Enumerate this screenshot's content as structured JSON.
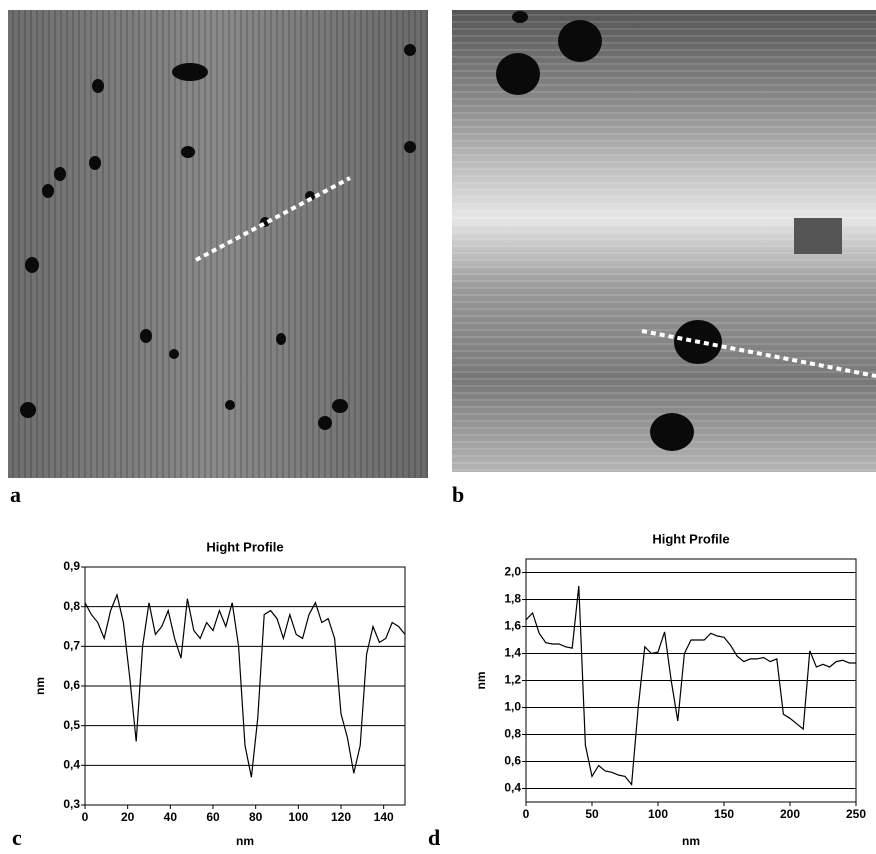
{
  "images": [
    {
      "label": "a"
    },
    {
      "label": "b"
    }
  ],
  "chart_data": [
    {
      "type": "line",
      "label": "c",
      "title": "Hight Profile",
      "x_label": "nm",
      "y_label": "nm",
      "xlim": [
        0,
        150
      ],
      "xticks": [
        0,
        20,
        40,
        60,
        80,
        100,
        120,
        140
      ],
      "ylim": [
        0.3,
        0.9
      ],
      "yticks": [
        {
          "value": 0.3,
          "label": "0,3"
        },
        {
          "value": 0.4,
          "label": "0,4"
        },
        {
          "value": 0.5,
          "label": "0,5"
        },
        {
          "value": 0.6,
          "label": "0,6"
        },
        {
          "value": 0.7,
          "label": "0,7"
        },
        {
          "value": 0.8,
          "label": "0,8"
        },
        {
          "value": 0.9,
          "label": "0,9"
        }
      ],
      "grid": true,
      "x": [
        0,
        3,
        6,
        9,
        12,
        15,
        18,
        21,
        24,
        27,
        30,
        33,
        36,
        39,
        42,
        45,
        48,
        51,
        54,
        57,
        60,
        63,
        66,
        69,
        72,
        75,
        78,
        81,
        84,
        87,
        90,
        93,
        96,
        99,
        102,
        105,
        108,
        111,
        114,
        117,
        120,
        123,
        126,
        129,
        132,
        135,
        138,
        141,
        144,
        147,
        150
      ],
      "series": [
        {
          "color": "#000000",
          "values": [
            0.81,
            0.78,
            0.76,
            0.72,
            0.79,
            0.83,
            0.76,
            0.62,
            0.46,
            0.7,
            0.81,
            0.73,
            0.75,
            0.79,
            0.72,
            0.67,
            0.82,
            0.74,
            0.72,
            0.76,
            0.74,
            0.79,
            0.75,
            0.81,
            0.7,
            0.45,
            0.37,
            0.52,
            0.78,
            0.79,
            0.77,
            0.72,
            0.78,
            0.73,
            0.72,
            0.78,
            0.81,
            0.76,
            0.77,
            0.72,
            0.53,
            0.47,
            0.38,
            0.45,
            0.68,
            0.75,
            0.71,
            0.72,
            0.76,
            0.75,
            0.73
          ]
        }
      ]
    },
    {
      "type": "line",
      "label": "d",
      "title": "Hight Profile",
      "x_label": "nm",
      "y_label": "nm",
      "xlim": [
        0,
        250
      ],
      "xticks": [
        0,
        50,
        100,
        150,
        200,
        250
      ],
      "ylim": [
        0.3,
        2.1
      ],
      "yticks": [
        {
          "value": 0.4,
          "label": "0,4"
        },
        {
          "value": 0.6,
          "label": "0,6"
        },
        {
          "value": 0.8,
          "label": "0,8"
        },
        {
          "value": 1,
          "label": "1,0"
        },
        {
          "value": 1.2,
          "label": "1,2"
        },
        {
          "value": 1.4,
          "label": "1,4"
        },
        {
          "value": 1.6,
          "label": "1,6"
        },
        {
          "value": 1.8,
          "label": "1,8"
        },
        {
          "value": 2,
          "label": "2,0"
        }
      ],
      "grid": true,
      "x": [
        0,
        5,
        10,
        15,
        20,
        25,
        30,
        35,
        40,
        45,
        50,
        55,
        60,
        65,
        70,
        75,
        80,
        85,
        90,
        95,
        100,
        105,
        110,
        115,
        120,
        125,
        130,
        135,
        140,
        145,
        150,
        155,
        160,
        165,
        170,
        175,
        180,
        185,
        190,
        195,
        200,
        205,
        210,
        215,
        220,
        225,
        230,
        235,
        240,
        245,
        250
      ],
      "series": [
        {
          "color": "#000000",
          "values": [
            1.65,
            1.7,
            1.55,
            1.48,
            1.47,
            1.47,
            1.45,
            1.44,
            1.9,
            0.72,
            0.49,
            0.57,
            0.53,
            0.52,
            0.5,
            0.49,
            0.43,
            1.0,
            1.45,
            1.4,
            1.41,
            1.56,
            1.2,
            0.9,
            1.4,
            1.5,
            1.5,
            1.5,
            1.55,
            1.53,
            1.52,
            1.46,
            1.38,
            1.34,
            1.36,
            1.36,
            1.37,
            1.34,
            1.36,
            0.95,
            0.92,
            0.88,
            0.84,
            1.42,
            1.3,
            1.32,
            1.3,
            1.34,
            1.35,
            1.33,
            1.33
          ]
        }
      ]
    }
  ]
}
